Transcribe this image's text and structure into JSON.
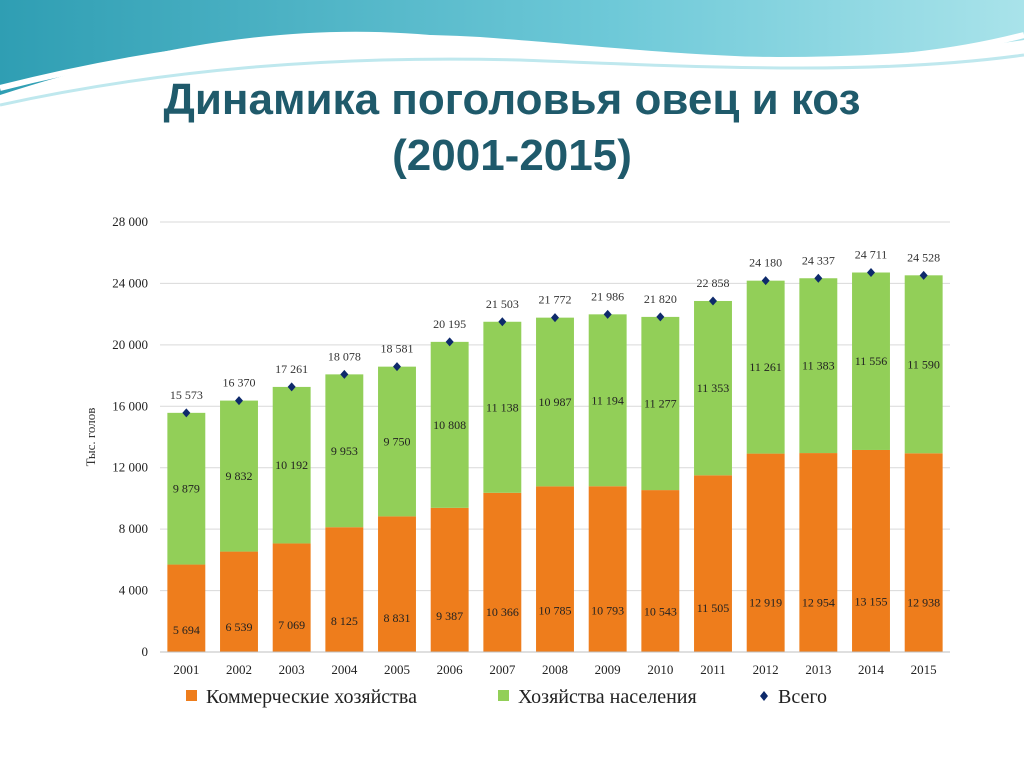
{
  "page": {
    "title_line1": "Динамика поголовья овец и коз",
    "title_line2": "(2001-2015)"
  },
  "colors": {
    "commercial": "#ee7d1c",
    "households": "#92cf58",
    "total_marker": "#0e2a6b",
    "title": "#1f5a6b"
  },
  "chart_data": {
    "type": "bar",
    "stacked": true,
    "categories": [
      "2001",
      "2002",
      "2003",
      "2004",
      "2005",
      "2006",
      "2007",
      "2008",
      "2009",
      "2010",
      "2011",
      "2012",
      "2013",
      "2014",
      "2015"
    ],
    "series": [
      {
        "name": "Коммерческие хозяйства",
        "values": [
          5694,
          6539,
          7069,
          8125,
          8831,
          9387,
          10366,
          10785,
          10793,
          10543,
          11505,
          12919,
          12954,
          13155,
          12938
        ]
      },
      {
        "name": "Хозяйства населения",
        "values": [
          9879,
          9832,
          10192,
          9953,
          9750,
          10808,
          11138,
          10987,
          11194,
          11277,
          11353,
          11261,
          11383,
          11556,
          11590
        ]
      }
    ],
    "totals": {
      "name": "Всего",
      "values": [
        15573,
        16370,
        17261,
        18078,
        18581,
        20195,
        21503,
        21772,
        21986,
        21820,
        22858,
        24180,
        24337,
        24711,
        24528
      ]
    },
    "ylabel": "Тыс. голов",
    "ylim": [
      0,
      28000
    ],
    "yticks": [
      0,
      4000,
      8000,
      12000,
      16000,
      20000,
      24000,
      28000
    ],
    "grid": true,
    "legend_position": "bottom"
  }
}
